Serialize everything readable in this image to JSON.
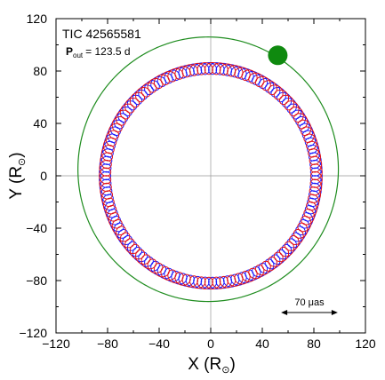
{
  "chart_data": {
    "type": "line",
    "title": "TIC 42565581",
    "annotation": {
      "prefix": "P",
      "subscript": "out",
      "value": "= 123.5 d"
    },
    "xlabel": {
      "main": "X (R",
      "sub": "⊙",
      "close": ")"
    },
    "ylabel": {
      "main": "Y (R",
      "sub": "⊙",
      "close": ")"
    },
    "xlim": [
      -120,
      120
    ],
    "ylim": [
      -120,
      120
    ],
    "xticks": [
      "−120",
      "−80",
      "−40",
      "0",
      "40",
      "80",
      "120"
    ],
    "yticks": [
      "−120",
      "−80",
      "−40",
      "0",
      "40",
      "80",
      "120"
    ],
    "xtick_values": [
      -120,
      -80,
      -40,
      0,
      40,
      80,
      120
    ],
    "ytick_values": [
      -120,
      -80,
      -40,
      0,
      40,
      80,
      120
    ],
    "grid": "zero-lines",
    "scale_bar": {
      "label": "70 μas",
      "length_data_units": 44
    },
    "series": [
      {
        "role": "inner-binary-star-1",
        "color": "#1a1aff",
        "orbit_radius": 82,
        "loop_radius": 4.5,
        "n_loops": 88
      },
      {
        "role": "inner-binary-star-2",
        "color": "#e0101a",
        "orbit_radius": 82,
        "loop_radius": 4.5,
        "n_loops": 88
      },
      {
        "role": "outer-third-body",
        "color": "#1e8c1e",
        "orbit_center": [
          -2,
          5
        ],
        "orbit_radius": 101
      }
    ],
    "outer_body_marker": {
      "x": 52,
      "y": 92,
      "color": "#0f8a0f"
    }
  }
}
